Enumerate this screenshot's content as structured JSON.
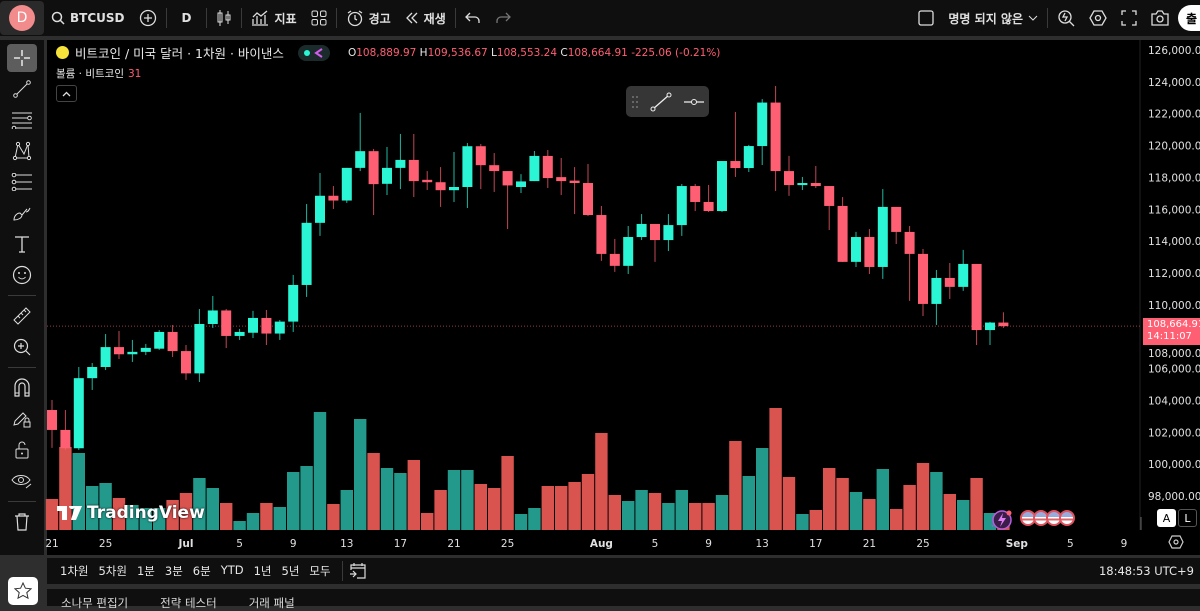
{
  "topbar": {
    "avatar": "D",
    "symbol": "BTCUSD",
    "interval": "D",
    "indicators": "지표",
    "alert": "경고",
    "replay": "재생",
    "layout_name": "명명 되지 않은",
    "publish": "출"
  },
  "legend": {
    "title": "비트코인 / 미국 달러 · 1차원 · 바이낸스",
    "o_label": "O",
    "o": "108,889.97",
    "h_label": "H",
    "h": "109,536.67",
    "l_label": "L",
    "l": "108,553.24",
    "c_label": "C",
    "c": "108,664.91",
    "change": "-225.06 (-0.21%)",
    "volume_label": "볼륨 · 비트코인",
    "volume_value": "31"
  },
  "price_tag": {
    "price": "108,664.91",
    "countdown": "14:11:07"
  },
  "bottom": {
    "timeframes": [
      "1차원",
      "5차원",
      "1분",
      "3분",
      "6분",
      "YTD",
      "1년",
      "5년",
      "모두"
    ],
    "clock": "18:48:53 UTC+9",
    "tabs": [
      "소나무 편집기",
      "전략 테스터",
      "거래 패널"
    ]
  },
  "watermark": "TradingView",
  "scale_buttons": {
    "auto": "A",
    "log": "L"
  },
  "colors": {
    "up": "#2af5d4",
    "down": "#ff5f73",
    "vol_up": "#22998b",
    "vol_down": "#d9534f",
    "avatar": "#f28b8b"
  },
  "chart_data": {
    "type": "candlestick",
    "ylim": [
      97000,
      127000
    ],
    "y_ticks": [
      "126,000.00",
      "124,000.00",
      "122,000.00",
      "120,000.00",
      "118,000.00",
      "116,000.00",
      "114,000.00",
      "112,000.00",
      "110,000.00",
      "108,000.00",
      "106,000.00",
      "104,000.00",
      "102,000.00",
      "100,000.00",
      "98,000.00"
    ],
    "x_ticks": [
      [
        "21",
        "06-21"
      ],
      [
        "25",
        "06-25"
      ],
      [
        "Jul",
        "07-01"
      ],
      [
        "5",
        "07-05"
      ],
      [
        "9",
        "07-09"
      ],
      [
        "13",
        "07-13"
      ],
      [
        "17",
        "07-17"
      ],
      [
        "21",
        "07-21"
      ],
      [
        "25",
        "07-25"
      ],
      [
        "Aug",
        "08-01"
      ],
      [
        "5",
        "08-05"
      ],
      [
        "9",
        "08-09"
      ],
      [
        "13",
        "08-13"
      ],
      [
        "17",
        "08-17"
      ],
      [
        "21",
        "08-21"
      ],
      [
        "25",
        "08-25"
      ],
      [
        "Sep",
        "09-01"
      ],
      [
        "5",
        "09-05"
      ],
      [
        "9",
        "09-09"
      ]
    ],
    "columns": [
      "date",
      "open",
      "high",
      "low",
      "close",
      "volume_relative"
    ],
    "candles": [
      [
        "06-21",
        103400,
        104030,
        101020,
        102150,
        31
      ],
      [
        "06-22",
        102150,
        103400,
        100890,
        101000,
        83
      ],
      [
        "06-23",
        101000,
        106100,
        100890,
        105400,
        77
      ],
      [
        "06-24",
        105400,
        106350,
        104660,
        106100,
        44
      ],
      [
        "06-25",
        106100,
        108170,
        105910,
        107350,
        47
      ],
      [
        "06-26",
        107350,
        108360,
        106600,
        106900,
        32
      ],
      [
        "06-27",
        106900,
        107800,
        106420,
        107050,
        25
      ],
      [
        "06-28",
        107050,
        107550,
        106850,
        107300,
        22
      ],
      [
        "06-29",
        107250,
        108420,
        107170,
        108300,
        22
      ],
      [
        "06-30",
        108300,
        108740,
        106730,
        107100,
        30
      ],
      [
        "07-01",
        107100,
        107480,
        105290,
        105700,
        37
      ],
      [
        "07-02",
        105700,
        109740,
        105160,
        108800,
        52
      ],
      [
        "07-03",
        108800,
        110560,
        108550,
        109650,
        42
      ],
      [
        "07-04",
        109650,
        109740,
        107290,
        108050,
        27
      ],
      [
        "07-05",
        108050,
        108490,
        107800,
        108300,
        9
      ],
      [
        "07-06",
        108250,
        109620,
        107920,
        109180,
        17
      ],
      [
        "07-07",
        109180,
        109680,
        107480,
        108200,
        27
      ],
      [
        "07-08",
        108200,
        109050,
        107800,
        108950,
        23
      ],
      [
        "07-09",
        108950,
        111880,
        108300,
        111250,
        58
      ],
      [
        "07-10",
        111250,
        116330,
        110500,
        115150,
        64
      ],
      [
        "07-11",
        115150,
        118280,
        114330,
        116850,
        118
      ],
      [
        "07-12",
        116850,
        117460,
        116020,
        116550,
        26
      ],
      [
        "07-13",
        116550,
        118600,
        116400,
        118600,
        40
      ],
      [
        "07-14",
        118600,
        122050,
        118400,
        119650,
        111
      ],
      [
        "07-15",
        119650,
        119790,
        115640,
        117580,
        77
      ],
      [
        "07-16",
        117600,
        119910,
        116900,
        118600,
        62
      ],
      [
        "07-17",
        118600,
        120730,
        117270,
        119100,
        57
      ],
      [
        "07-18",
        119100,
        120730,
        116770,
        117770,
        70
      ],
      [
        "07-19",
        117850,
        118400,
        117210,
        117700,
        17
      ],
      [
        "07-20",
        117700,
        118650,
        116150,
        117200,
        40
      ],
      [
        "07-21",
        117200,
        119600,
        116460,
        117400,
        60
      ],
      [
        "07-22",
        117400,
        120160,
        116080,
        119960,
        60
      ],
      [
        "07-23",
        119960,
        120100,
        117270,
        118770,
        46
      ],
      [
        "07-24",
        118770,
        119530,
        117090,
        118400,
        42
      ],
      [
        "07-25",
        118400,
        118400,
        114760,
        117500,
        74
      ],
      [
        "07-26",
        117400,
        118210,
        117020,
        117750,
        16
      ],
      [
        "07-27",
        117770,
        119660,
        117770,
        119350,
        22
      ],
      [
        "07-28",
        119350,
        119720,
        117340,
        117960,
        44
      ],
      [
        "07-29",
        118020,
        119220,
        116900,
        117770,
        44
      ],
      [
        "07-30",
        117800,
        118650,
        115700,
        117650,
        48
      ],
      [
        "07-31",
        117650,
        118840,
        115580,
        115640,
        56
      ],
      [
        "08-01",
        115640,
        116210,
        112760,
        113200,
        97
      ],
      [
        "08-02",
        113200,
        114140,
        112070,
        112450,
        35
      ],
      [
        "08-03",
        112450,
        114950,
        111940,
        114260,
        29
      ],
      [
        "08-04",
        114260,
        115700,
        114070,
        115080,
        40
      ],
      [
        "08-05",
        115080,
        115080,
        112700,
        114070,
        37
      ],
      [
        "08-06",
        114070,
        115700,
        113380,
        115010,
        27
      ],
      [
        "08-07",
        115010,
        117590,
        114330,
        117460,
        40
      ],
      [
        "08-08",
        117460,
        117590,
        115890,
        116460,
        27
      ],
      [
        "08-09",
        116460,
        117530,
        115830,
        115890,
        27
      ],
      [
        "08-10",
        115890,
        119030,
        115830,
        119030,
        35
      ],
      [
        "08-11",
        119030,
        122110,
        118030,
        118590,
        89
      ],
      [
        "08-12",
        118590,
        120040,
        118340,
        119970,
        54
      ],
      [
        "08-13",
        119970,
        122920,
        118780,
        122700,
        82
      ],
      [
        "08-14",
        122700,
        123740,
        117150,
        118400,
        122
      ],
      [
        "08-15",
        118400,
        119350,
        116840,
        117520,
        53
      ],
      [
        "08-16",
        117520,
        118030,
        117210,
        117650,
        16
      ],
      [
        "08-17",
        117650,
        118720,
        117340,
        117460,
        20
      ],
      [
        "08-18",
        117460,
        117460,
        114700,
        116210,
        62
      ],
      [
        "08-19",
        116210,
        116770,
        112690,
        112700,
        52
      ],
      [
        "08-20",
        112700,
        114580,
        112380,
        114260,
        38
      ],
      [
        "08-21",
        114260,
        114760,
        111940,
        112380,
        31
      ],
      [
        "08-22",
        112380,
        117270,
        111630,
        116150,
        61
      ],
      [
        "08-23",
        116150,
        116150,
        113820,
        114580,
        21
      ],
      [
        "08-24",
        114580,
        114950,
        110250,
        113200,
        45
      ],
      [
        "08-25",
        113200,
        113510,
        109300,
        110060,
        67
      ],
      [
        "08-26",
        110060,
        112190,
        108740,
        111690,
        58
      ],
      [
        "08-27",
        111690,
        112630,
        110370,
        111130,
        36
      ],
      [
        "08-28",
        111130,
        113450,
        110880,
        112570,
        30
      ],
      [
        "08-29",
        112570,
        112570,
        107480,
        108420,
        52
      ],
      [
        "08-30",
        108420,
        108930,
        107480,
        108890,
        17
      ],
      [
        "08-31",
        108889.97,
        109536.67,
        108553.24,
        108664.91,
        10
      ]
    ]
  }
}
